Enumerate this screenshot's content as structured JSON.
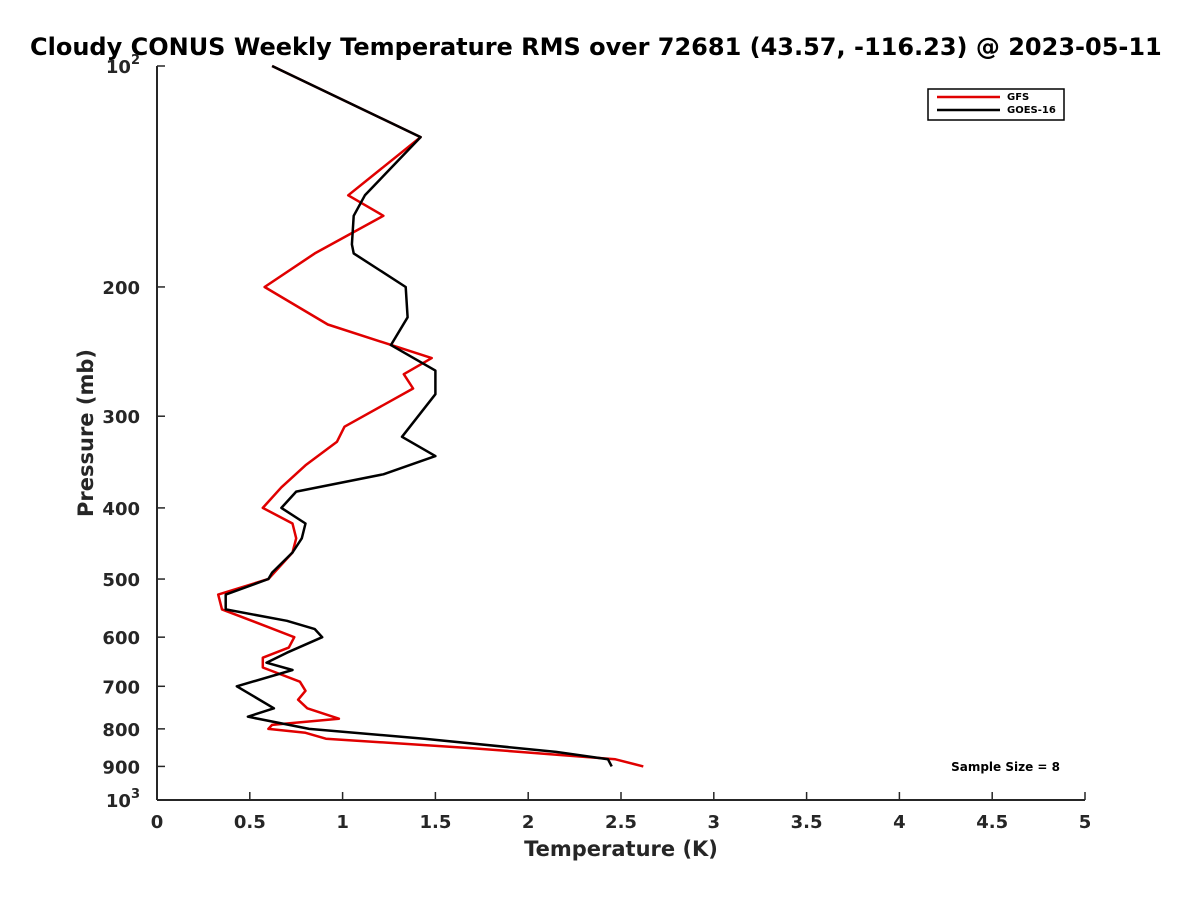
{
  "chart_data": {
    "type": "line",
    "title": "Cloudy CONUS Weekly Temperature RMS over 72681 (43.57, -116.23) @ 2023-05-11",
    "xlabel": "Temperature (K)",
    "ylabel": "Pressure (mb)",
    "xlim": [
      0,
      5
    ],
    "ylim": [
      100,
      1000
    ],
    "yscale": "log",
    "y_reversed": true,
    "x_ticks": [
      "0",
      "0.5",
      "1",
      "1.5",
      "2",
      "2.5",
      "3",
      "3.5",
      "4",
      "4.5",
      "5"
    ],
    "y_ticks": [
      {
        "value": 100,
        "base": "10",
        "exp": "2"
      },
      {
        "value": 200,
        "label": "200"
      },
      {
        "value": 300,
        "label": "300"
      },
      {
        "value": 400,
        "label": "400"
      },
      {
        "value": 500,
        "label": "500"
      },
      {
        "value": 600,
        "label": "600"
      },
      {
        "value": 700,
        "label": "700"
      },
      {
        "value": 800,
        "label": "800"
      },
      {
        "value": 900,
        "label": "900"
      },
      {
        "value": 1000,
        "base": "10",
        "exp": "3"
      }
    ],
    "legend_position": "top-right",
    "series": [
      {
        "name": "GFS",
        "color": "#e00000",
        "points": [
          [
            0.62,
            100
          ],
          [
            1.42,
            125
          ],
          [
            1.03,
            150
          ],
          [
            1.22,
            160
          ],
          [
            0.85,
            180
          ],
          [
            0.58,
            200
          ],
          [
            0.92,
            225
          ],
          [
            1.48,
            250
          ],
          [
            1.33,
            263
          ],
          [
            1.38,
            275
          ],
          [
            1.01,
            310
          ],
          [
            0.97,
            325
          ],
          [
            0.8,
            350
          ],
          [
            0.67,
            375
          ],
          [
            0.57,
            400
          ],
          [
            0.73,
            420
          ],
          [
            0.75,
            440
          ],
          [
            0.73,
            460
          ],
          [
            0.6,
            500
          ],
          [
            0.33,
            525
          ],
          [
            0.35,
            550
          ],
          [
            0.59,
            580
          ],
          [
            0.74,
            600
          ],
          [
            0.71,
            620
          ],
          [
            0.57,
            640
          ],
          [
            0.57,
            660
          ],
          [
            0.77,
            690
          ],
          [
            0.8,
            710
          ],
          [
            0.76,
            730
          ],
          [
            0.81,
            750
          ],
          [
            0.98,
            775
          ],
          [
            0.62,
            790
          ],
          [
            0.6,
            800
          ],
          [
            0.8,
            810
          ],
          [
            0.91,
            825
          ],
          [
            1.7,
            850
          ],
          [
            2.47,
            880
          ],
          [
            2.62,
            900
          ]
        ]
      },
      {
        "name": "GOES-16",
        "color": "#000000",
        "points": [
          [
            0.62,
            100
          ],
          [
            1.42,
            125
          ],
          [
            1.12,
            150
          ],
          [
            1.06,
            160
          ],
          [
            1.05,
            175
          ],
          [
            1.06,
            180
          ],
          [
            1.34,
            200
          ],
          [
            1.35,
            220
          ],
          [
            1.26,
            240
          ],
          [
            1.5,
            260
          ],
          [
            1.5,
            280
          ],
          [
            1.32,
            320
          ],
          [
            1.5,
            340
          ],
          [
            1.22,
            360
          ],
          [
            0.75,
            380
          ],
          [
            0.67,
            400
          ],
          [
            0.8,
            420
          ],
          [
            0.78,
            440
          ],
          [
            0.73,
            460
          ],
          [
            0.62,
            490
          ],
          [
            0.6,
            500
          ],
          [
            0.37,
            525
          ],
          [
            0.37,
            550
          ],
          [
            0.7,
            570
          ],
          [
            0.85,
            585
          ],
          [
            0.89,
            600
          ],
          [
            0.7,
            630
          ],
          [
            0.59,
            650
          ],
          [
            0.73,
            665
          ],
          [
            0.43,
            700
          ],
          [
            0.63,
            750
          ],
          [
            0.49,
            770
          ],
          [
            0.82,
            800
          ],
          [
            1.44,
            825
          ],
          [
            2.15,
            860
          ],
          [
            2.43,
            880
          ],
          [
            2.45,
            900
          ]
        ]
      }
    ],
    "annotation": "Sample Size = 8"
  }
}
